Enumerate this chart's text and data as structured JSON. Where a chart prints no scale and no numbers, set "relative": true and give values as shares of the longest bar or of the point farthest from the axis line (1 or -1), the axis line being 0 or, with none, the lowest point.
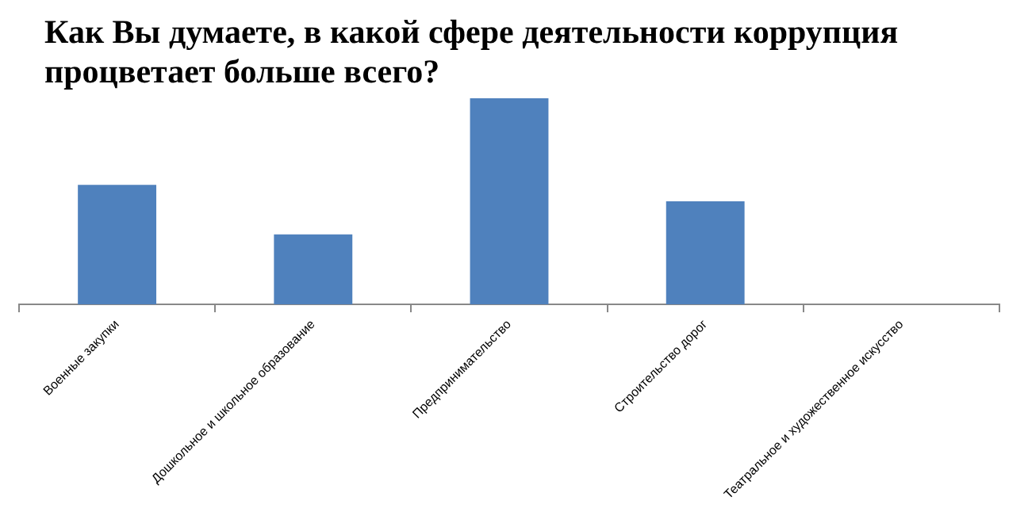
{
  "chart_data": {
    "type": "bar",
    "title": "Как Вы думаете, в какой сфере деятельности коррупция процветает больше всего?",
    "categories": [
      "Военные закупки",
      "Дошкольное и школьное образование",
      "Предпринимательство",
      "Строительство дорог",
      "Театральное и художественное искусство"
    ],
    "values": [
      0.58,
      0.34,
      1,
      0.5,
      0
    ],
    "color": "#4f81bd",
    "relative": true,
    "legend": false
  }
}
